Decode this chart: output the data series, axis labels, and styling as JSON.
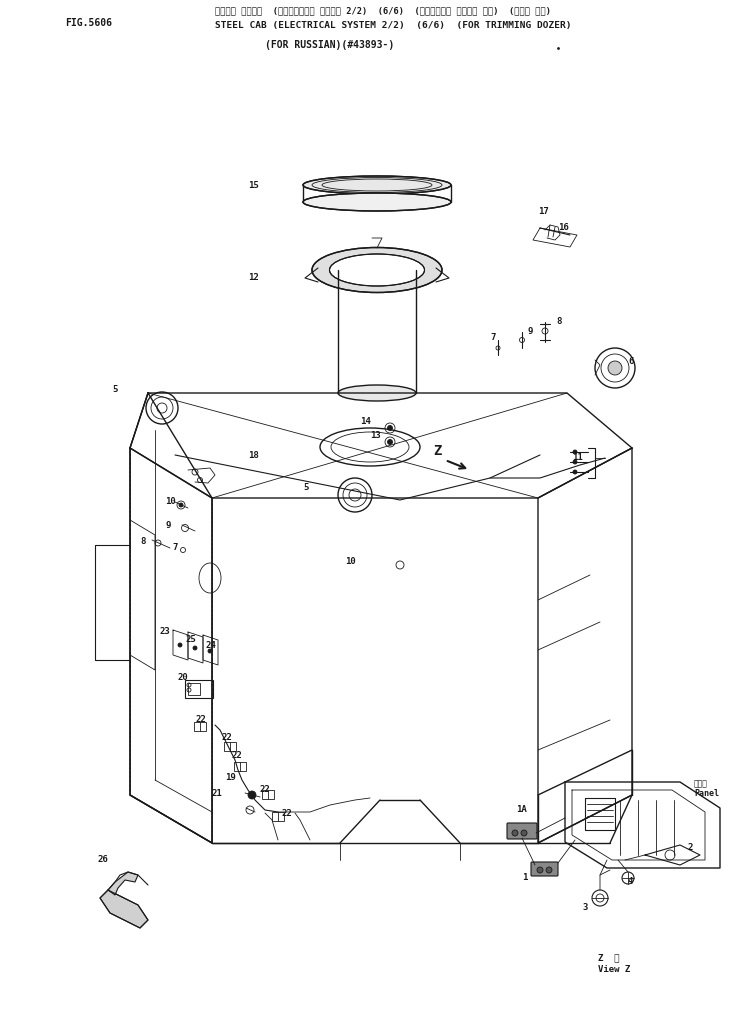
{
  "title_jp": "スチール キャブ＊  (エレクトリカル システム 2/2)  (6/6)  (トリミング＊ ドーザー ヨク)  (ノミア ヨク)",
  "title_en": "STEEL CAB (ELECTRICAL SYSTEM 2/2)  (6/6)  (FOR TRIMMING DOZER)",
  "title_sub": "(FOR RUSSIAN)(#43893-)",
  "fig_label": "FIG.5606",
  "bg_color": "#ffffff",
  "line_color": "#1a1a1a",
  "font_size_label": 6.5
}
